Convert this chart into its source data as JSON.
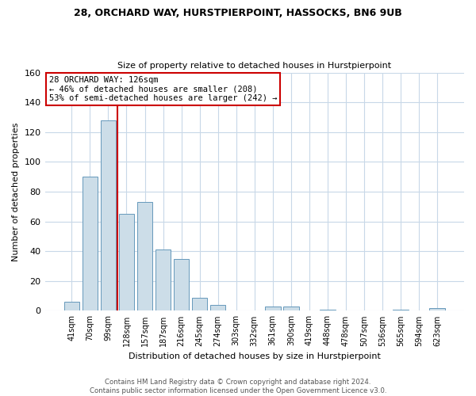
{
  "title": "28, ORCHARD WAY, HURSTPIERPOINT, HASSOCKS, BN6 9UB",
  "subtitle": "Size of property relative to detached houses in Hurstpierpoint",
  "xlabel": "Distribution of detached houses by size in Hurstpierpoint",
  "ylabel": "Number of detached properties",
  "bar_labels": [
    "41sqm",
    "70sqm",
    "99sqm",
    "128sqm",
    "157sqm",
    "187sqm",
    "216sqm",
    "245sqm",
    "274sqm",
    "303sqm",
    "332sqm",
    "361sqm",
    "390sqm",
    "419sqm",
    "448sqm",
    "478sqm",
    "507sqm",
    "536sqm",
    "565sqm",
    "594sqm",
    "623sqm"
  ],
  "bar_values": [
    6,
    90,
    128,
    65,
    73,
    41,
    35,
    9,
    4,
    0,
    0,
    3,
    3,
    0,
    1,
    0,
    0,
    0,
    1,
    0,
    2
  ],
  "bar_color": "#ccdde8",
  "bar_edge_color": "#6699bb",
  "vline_color": "#cc0000",
  "annotation_text": "28 ORCHARD WAY: 126sqm\n← 46% of detached houses are smaller (208)\n53% of semi-detached houses are larger (242) →",
  "annotation_box_edge": "#cc0000",
  "footer_line1": "Contains HM Land Registry data © Crown copyright and database right 2024.",
  "footer_line2": "Contains public sector information licensed under the Open Government Licence v3.0.",
  "background_color": "#ffffff",
  "grid_color": "#c8d8e8"
}
